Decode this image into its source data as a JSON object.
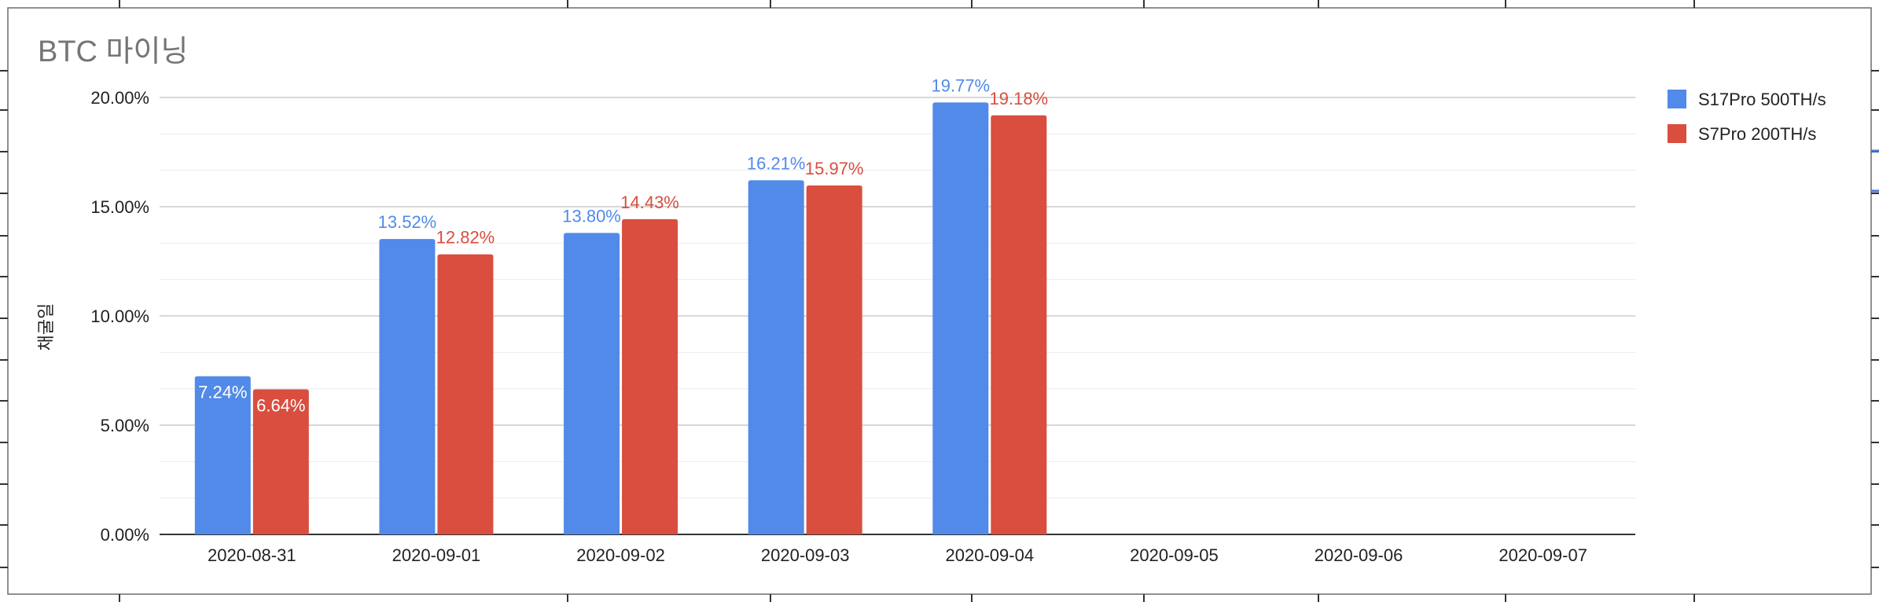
{
  "chart_data": {
    "type": "bar",
    "title": "BTC 마이닝",
    "ylabel": "채굴일",
    "xlabel": "",
    "categories": [
      "2020-08-31",
      "2020-09-01",
      "2020-09-02",
      "2020-09-03",
      "2020-09-04",
      "2020-09-05",
      "2020-09-06",
      "2020-09-07"
    ],
    "ylim": [
      0,
      20
    ],
    "y_ticks": [
      "0.00%",
      "5.00%",
      "10.00%",
      "15.00%",
      "20.00%"
    ],
    "y_tick_values": [
      0,
      5,
      10,
      15,
      20
    ],
    "grid": true,
    "legend_position": "right",
    "series": [
      {
        "name": "S17Pro 500TH/s",
        "color": "#518ae8",
        "values": [
          7.24,
          13.52,
          13.8,
          16.21,
          19.77,
          null,
          null,
          null
        ],
        "labels": [
          "7.24%",
          "13.52%",
          "13.80%",
          "16.21%",
          "19.77%",
          "",
          "",
          ""
        ]
      },
      {
        "name": "S7Pro 200TH/s",
        "color": "#d94e3f",
        "values": [
          6.64,
          12.82,
          14.43,
          15.97,
          19.18,
          null,
          null,
          null
        ],
        "labels": [
          "6.64%",
          "12.82%",
          "14.43%",
          "15.97%",
          "19.18%",
          "",
          "",
          ""
        ]
      }
    ]
  }
}
